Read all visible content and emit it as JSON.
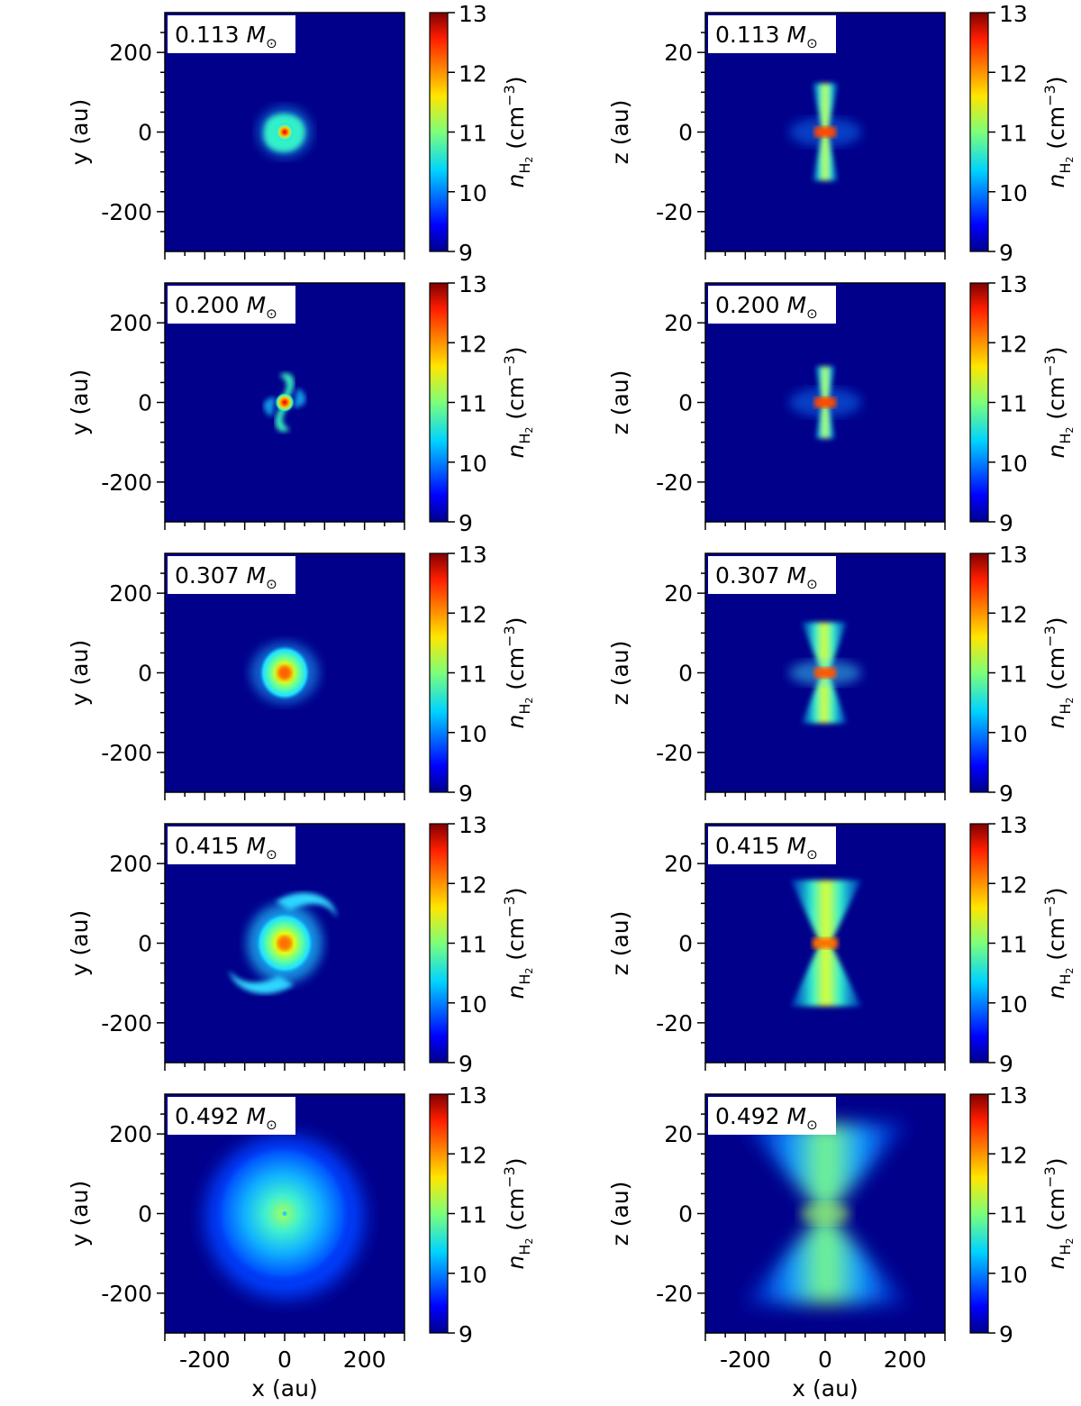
{
  "figure": {
    "mass_unit": "M",
    "colorbar_label_main": "n",
    "colorbar_label_sub": "H",
    "colorbar_label_subsub": "2",
    "colorbar_label_units": "(cm",
    "colorbar_label_exp": "−3",
    "colorbar_label_close": ")",
    "colorbar_ticks": [
      "9",
      "10",
      "11",
      "12",
      "13"
    ],
    "colorbar_range": [
      9,
      13
    ],
    "x_label": "x (au)",
    "colors": {
      "background": "#00008b",
      "max": "#800000"
    }
  },
  "chart_data": [
    {
      "type": "heatmap",
      "row": 0,
      "view": "face-on",
      "mass": "0.113",
      "ylabel": "y (au)",
      "xlabel": "",
      "xlim": [
        -300,
        300
      ],
      "ylim": [
        -300,
        300
      ],
      "x_ticks": [
        "-200",
        "0",
        "200"
      ],
      "x_tick_values": [
        -200,
        0,
        200
      ],
      "y_ticks": [
        "200",
        "0",
        "-200"
      ],
      "y_tick_values": [
        200,
        0,
        -200
      ],
      "structure": "compact disk with weak spiral",
      "show_xticklabels": false
    },
    {
      "type": "heatmap",
      "row": 0,
      "view": "edge-on",
      "mass": "0.113",
      "ylabel": "z (au)",
      "xlabel": "",
      "xlim": [
        -300,
        300
      ],
      "ylim": [
        -30,
        30
      ],
      "x_ticks": [
        "-200",
        "0",
        "200"
      ],
      "x_tick_values": [
        -200,
        0,
        200
      ],
      "y_ticks": [
        "20",
        "0",
        "-20"
      ],
      "y_tick_values": [
        20,
        0,
        -20
      ],
      "structure": "narrow hourglass",
      "show_xticklabels": false
    },
    {
      "type": "heatmap",
      "row": 1,
      "view": "face-on",
      "mass": "0.200",
      "ylabel": "y (au)",
      "xlabel": "",
      "xlim": [
        -300,
        300
      ],
      "ylim": [
        -300,
        300
      ],
      "x_ticks": [
        "-200",
        "0",
        "200"
      ],
      "x_tick_values": [
        -200,
        0,
        200
      ],
      "y_ticks": [
        "200",
        "0",
        "-200"
      ],
      "y_tick_values": [
        200,
        0,
        -200
      ],
      "structure": "two-armed spiral",
      "show_xticklabels": false
    },
    {
      "type": "heatmap",
      "row": 1,
      "view": "edge-on",
      "mass": "0.200",
      "ylabel": "z (au)",
      "xlabel": "",
      "xlim": [
        -300,
        300
      ],
      "ylim": [
        -30,
        30
      ],
      "x_ticks": [
        "-200",
        "0",
        "200"
      ],
      "x_tick_values": [
        -200,
        0,
        200
      ],
      "y_ticks": [
        "20",
        "0",
        "-20"
      ],
      "y_tick_values": [
        20,
        0,
        -20
      ],
      "structure": "narrow hourglass",
      "show_xticklabels": false
    },
    {
      "type": "heatmap",
      "row": 2,
      "view": "face-on",
      "mass": "0.307",
      "ylabel": "y (au)",
      "xlabel": "",
      "xlim": [
        -300,
        300
      ],
      "ylim": [
        -300,
        300
      ],
      "x_ticks": [
        "-200",
        "0",
        "200"
      ],
      "x_tick_values": [
        -200,
        0,
        200
      ],
      "y_ticks": [
        "200",
        "0",
        "-200"
      ],
      "y_tick_values": [
        200,
        0,
        -200
      ],
      "structure": "round disk",
      "show_xticklabels": false
    },
    {
      "type": "heatmap",
      "row": 2,
      "view": "edge-on",
      "mass": "0.307",
      "ylabel": "z (au)",
      "xlabel": "",
      "xlim": [
        -300,
        300
      ],
      "ylim": [
        -30,
        30
      ],
      "x_ticks": [
        "-200",
        "0",
        "200"
      ],
      "x_tick_values": [
        -200,
        0,
        200
      ],
      "y_ticks": [
        "20",
        "0",
        "-20"
      ],
      "y_tick_values": [
        20,
        0,
        -20
      ],
      "structure": "hourglass",
      "show_xticklabels": false
    },
    {
      "type": "heatmap",
      "row": 3,
      "view": "face-on",
      "mass": "0.415",
      "ylabel": "y (au)",
      "xlabel": "",
      "xlim": [
        -300,
        300
      ],
      "ylim": [
        -300,
        300
      ],
      "x_ticks": [
        "-200",
        "0",
        "200"
      ],
      "x_tick_values": [
        -200,
        0,
        200
      ],
      "y_ticks": [
        "200",
        "0",
        "-200"
      ],
      "y_tick_values": [
        200,
        0,
        -200
      ],
      "structure": "extended two-armed spiral",
      "show_xticklabels": false
    },
    {
      "type": "heatmap",
      "row": 3,
      "view": "edge-on",
      "mass": "0.415",
      "ylabel": "z (au)",
      "xlabel": "",
      "xlim": [
        -300,
        300
      ],
      "ylim": [
        -30,
        30
      ],
      "x_ticks": [
        "-200",
        "0",
        "200"
      ],
      "x_tick_values": [
        -200,
        0,
        200
      ],
      "y_ticks": [
        "20",
        "0",
        "-20"
      ],
      "y_tick_values": [
        20,
        0,
        -20
      ],
      "structure": "wide hourglass",
      "show_xticklabels": false
    },
    {
      "type": "heatmap",
      "row": 4,
      "view": "face-on",
      "mass": "0.492",
      "ylabel": "y (au)",
      "xlabel": "x (au)",
      "xlim": [
        -300,
        300
      ],
      "ylim": [
        -300,
        300
      ],
      "x_ticks": [
        "-200",
        "0",
        "200"
      ],
      "x_tick_values": [
        -200,
        0,
        200
      ],
      "y_ticks": [
        "200",
        "0",
        "-200"
      ],
      "y_tick_values": [
        200,
        0,
        -200
      ],
      "structure": "large diffuse disk",
      "show_xticklabels": true
    },
    {
      "type": "heatmap",
      "row": 4,
      "view": "edge-on",
      "mass": "0.492",
      "ylabel": "z (au)",
      "xlabel": "x (au)",
      "xlim": [
        -300,
        300
      ],
      "ylim": [
        -30,
        30
      ],
      "x_ticks": [
        "-200",
        "0",
        "200"
      ],
      "x_tick_values": [
        -200,
        0,
        200
      ],
      "y_ticks": [
        "20",
        "0",
        "-20"
      ],
      "y_tick_values": [
        20,
        0,
        -20
      ],
      "structure": "large diffuse hourglass",
      "show_xticklabels": true
    }
  ]
}
